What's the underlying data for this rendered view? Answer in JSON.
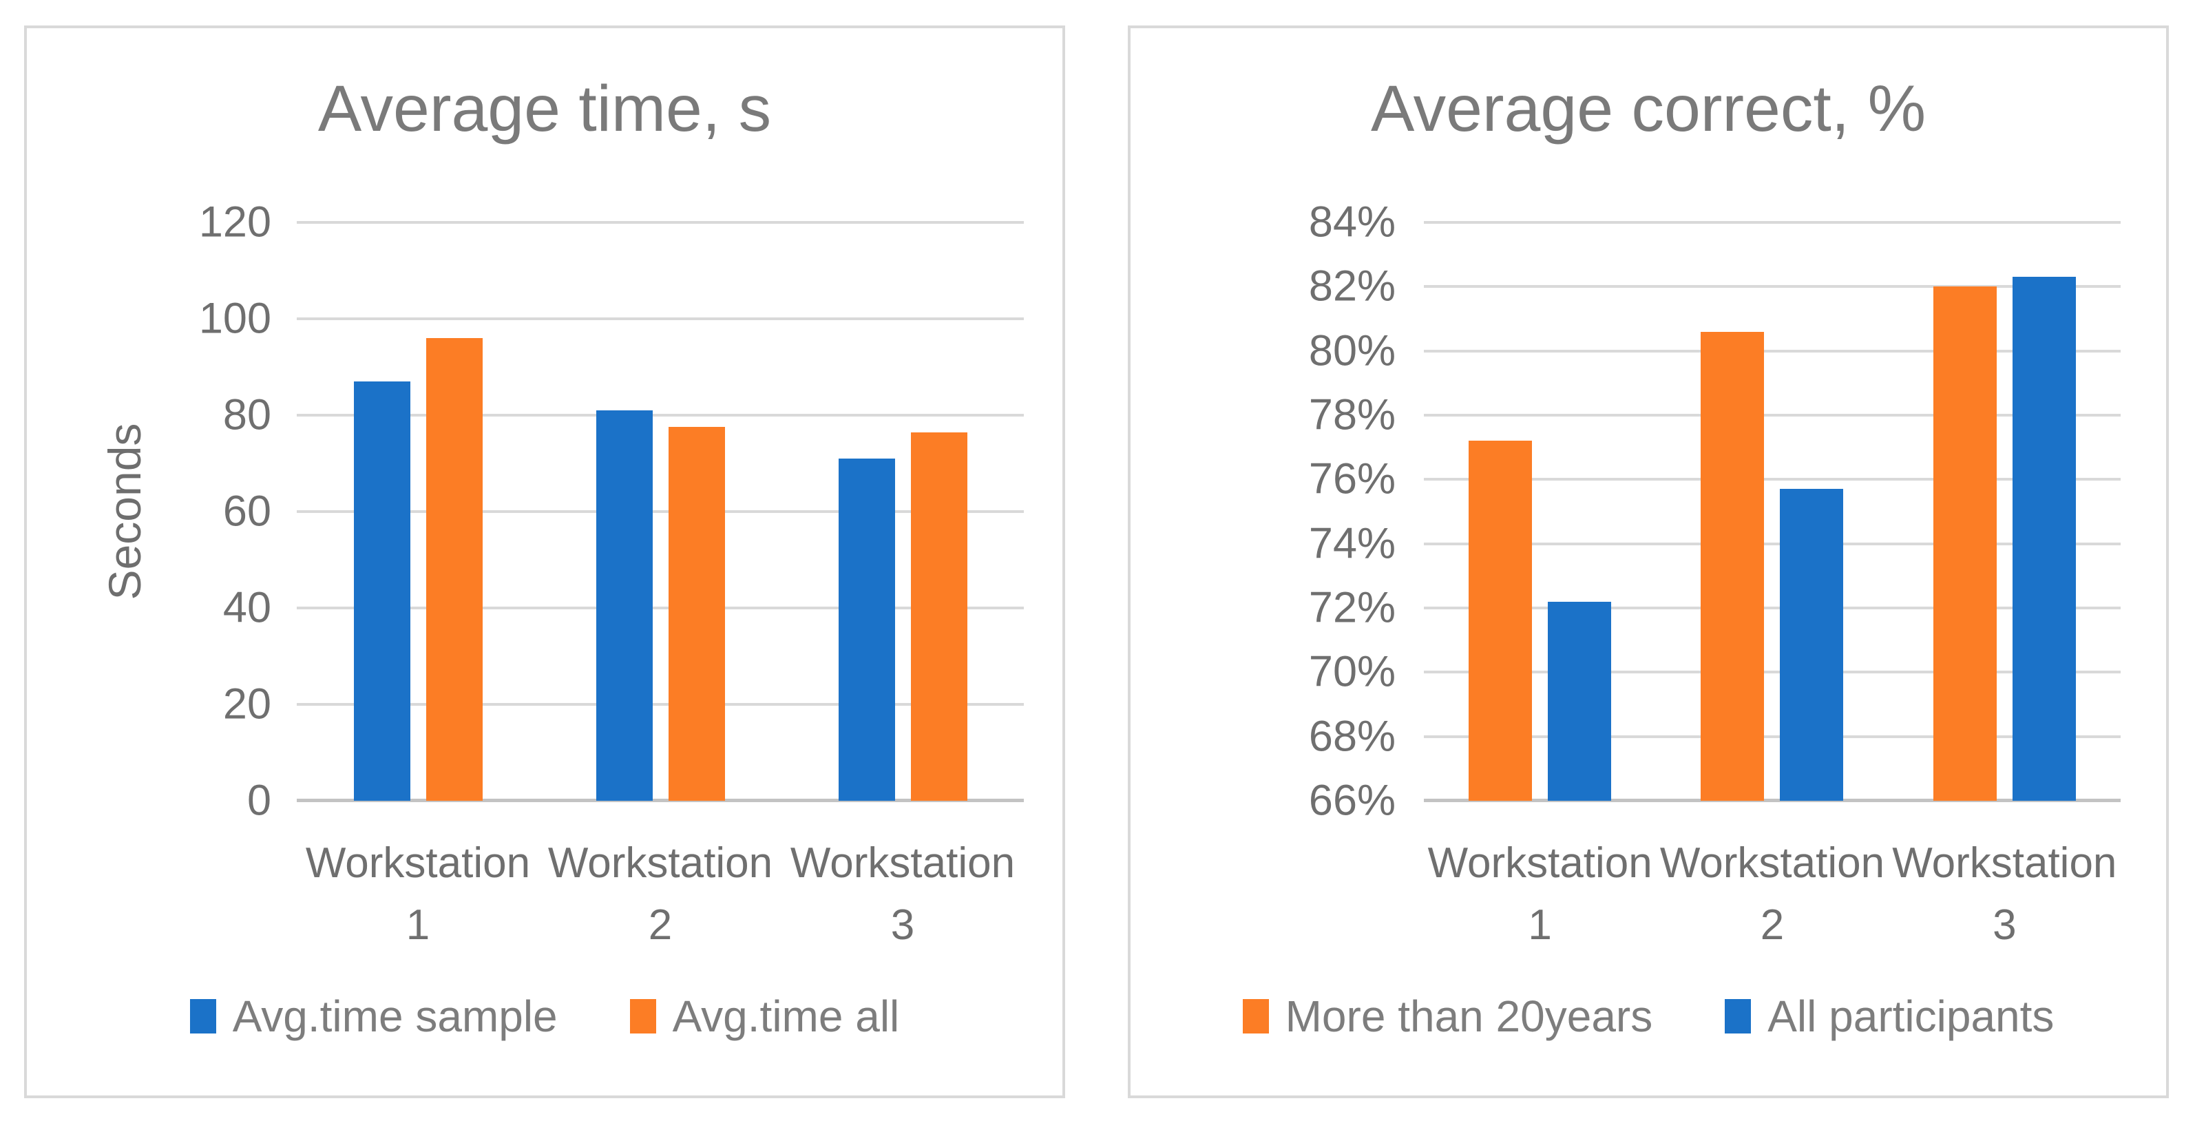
{
  "page": {
    "background": "#FFFFFF"
  },
  "colors": {
    "series_blue": "#1B72C8",
    "series_orange": "#FC7D25",
    "gridline": "#D9D9D9",
    "axis_line": "#C3C3C3",
    "panel_border": "#D9D9D9",
    "title_text": "#7A7A7A",
    "axis_text": "#6F6F6F",
    "legend_text": "#7D7D7D"
  },
  "chart_data": [
    {
      "type": "bar",
      "title": "Average time, s",
      "ylabel": "Seconds",
      "xlabel": "",
      "categories": [
        "Workstation 1",
        "Workstation 2",
        "Workstation 3"
      ],
      "series": [
        {
          "name": "Avg.time sample",
          "color": "#1B72C8",
          "values": [
            87,
            81,
            71
          ]
        },
        {
          "name": "Avg.time all",
          "color": "#FC7D25",
          "values": [
            96,
            77.6,
            76.4
          ]
        }
      ],
      "ymin": 0,
      "ymax": 120,
      "yticks": [
        {
          "value": 0,
          "label": "0"
        },
        {
          "value": 20,
          "label": "20"
        },
        {
          "value": 40,
          "label": "40"
        },
        {
          "value": 60,
          "label": "60"
        },
        {
          "value": 80,
          "label": "80"
        },
        {
          "value": 100,
          "label": "100"
        },
        {
          "value": 120,
          "label": "120"
        }
      ],
      "grid": true,
      "legend_position": "bottom"
    },
    {
      "type": "bar",
      "title": "Average correct, %",
      "ylabel": "",
      "xlabel": "",
      "categories": [
        "Workstation 1",
        "Workstation 2",
        "Workstation 3"
      ],
      "series": [
        {
          "name": "More than 20years",
          "color": "#FC7D25",
          "values": [
            77.2,
            80.6,
            82
          ]
        },
        {
          "name": "All participants",
          "color": "#1B72C8",
          "values": [
            72.2,
            75.7,
            82.3
          ]
        }
      ],
      "ymin": 66,
      "ymax": 84,
      "yticks": [
        {
          "value": 66,
          "label": "66%"
        },
        {
          "value": 68,
          "label": "68%"
        },
        {
          "value": 70,
          "label": "70%"
        },
        {
          "value": 72,
          "label": "72%"
        },
        {
          "value": 74,
          "label": "74%"
        },
        {
          "value": 76,
          "label": "76%"
        },
        {
          "value": 78,
          "label": "78%"
        },
        {
          "value": 80,
          "label": "80%"
        },
        {
          "value": 82,
          "label": "82%"
        },
        {
          "value": 84,
          "label": "84%"
        }
      ],
      "grid": true,
      "legend_position": "bottom"
    }
  ]
}
